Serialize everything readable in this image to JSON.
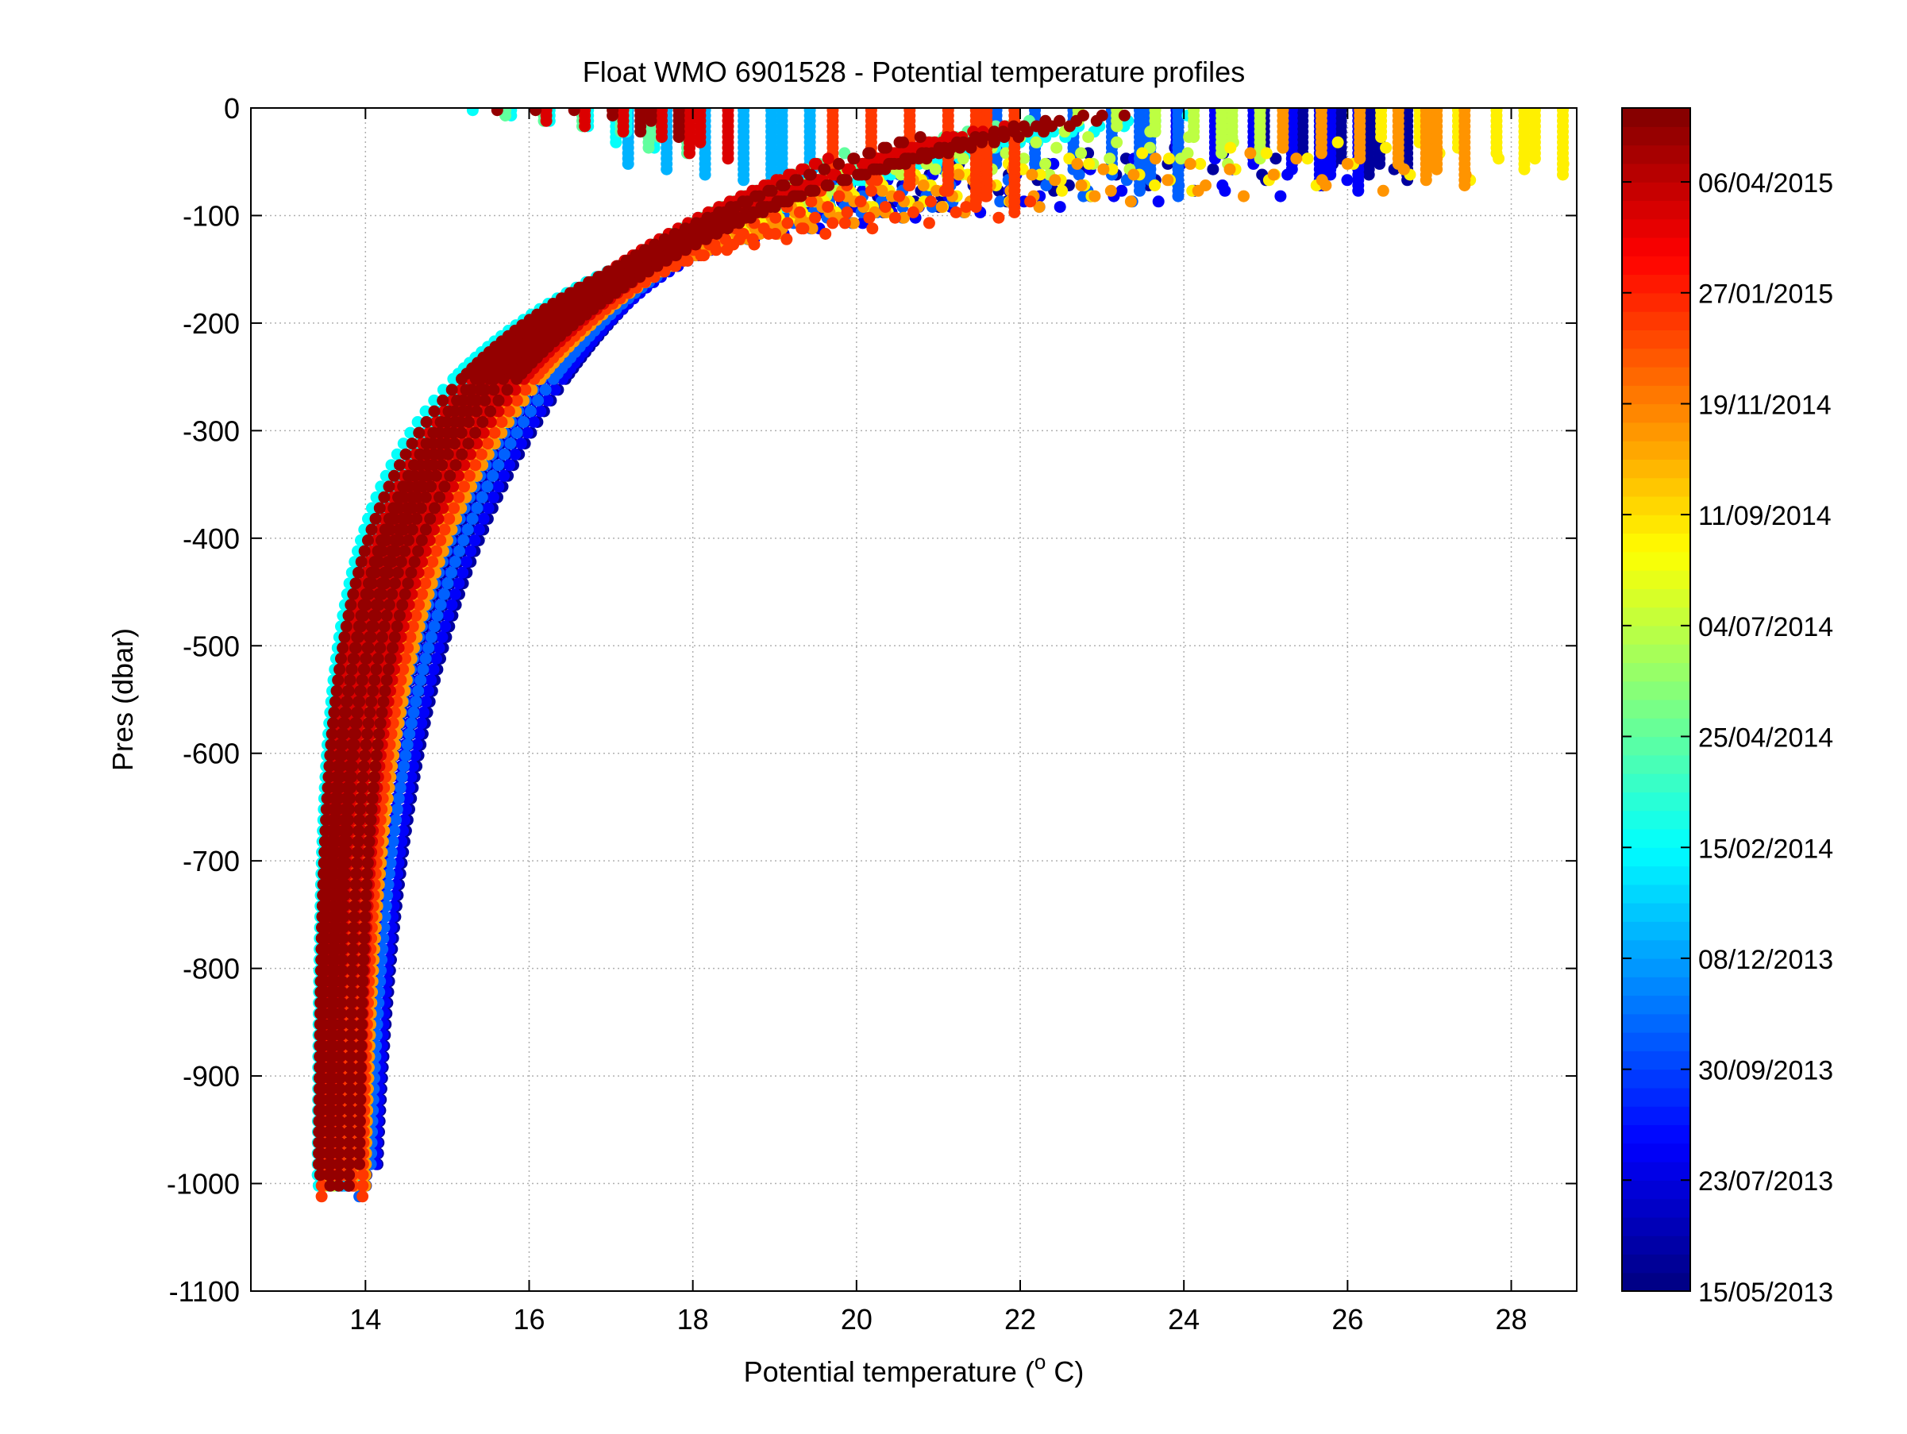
{
  "chart_data": {
    "type": "scatter",
    "title": "Float WMO 6901528 - Potential temperature profiles",
    "xlabel": "Potential temperature (",
    "xlabel_unit_sup": "o",
    "xlabel_unit_end": " C)",
    "ylabel": "Pres (dbar)",
    "xlim": [
      12.6,
      28.8
    ],
    "ylim": [
      -1100,
      0
    ],
    "xticks": [
      14,
      16,
      18,
      20,
      22,
      24,
      26,
      28
    ],
    "yticks": [
      0,
      -100,
      -200,
      -300,
      -400,
      -500,
      -600,
      -700,
      -800,
      -900,
      -1000,
      -1100
    ],
    "grid": true,
    "colormap": "jet",
    "colorbar": {
      "position": "right",
      "tick_labels": [
        "15/05/2013",
        "23/07/2013",
        "30/09/2013",
        "08/12/2013",
        "15/02/2014",
        "25/04/2014",
        "04/07/2014",
        "11/09/2014",
        "19/11/2014",
        "27/01/2015",
        "06/04/2015"
      ],
      "tick_fractions": [
        0,
        0.0938,
        0.1875,
        0.2813,
        0.375,
        0.4688,
        0.5625,
        0.6563,
        0.75,
        0.8438,
        0.9375
      ]
    },
    "profile_groups": [
      {
        "date_fraction": 0.03,
        "surface_temp": 25.8,
        "mixed_layer_depth": 50,
        "deep_base_temp": 13.75,
        "shape": 260
      },
      {
        "date_fraction": 0.12,
        "surface_temp": 25.2,
        "mixed_layer_depth": 60,
        "deep_base_temp": 13.75,
        "shape": 250
      },
      {
        "date_fraction": 0.22,
        "surface_temp": 23.0,
        "mixed_layer_depth": 65,
        "deep_base_temp": 13.72,
        "shape": 230
      },
      {
        "date_fraction": 0.3,
        "surface_temp": 18.5,
        "mixed_layer_depth": 70,
        "deep_base_temp": 13.7,
        "shape": 200
      },
      {
        "date_fraction": 0.38,
        "surface_temp": 16.6,
        "mixed_layer_depth": 20,
        "deep_base_temp": 13.65,
        "shape": 150
      },
      {
        "date_fraction": 0.47,
        "surface_temp": 17.0,
        "mixed_layer_depth": 25,
        "deep_base_temp": 13.68,
        "shape": 175
      },
      {
        "date_fraction": 0.56,
        "surface_temp": 24.0,
        "mixed_layer_depth": 30,
        "deep_base_temp": 13.7,
        "shape": 195
      },
      {
        "date_fraction": 0.64,
        "surface_temp": 27.7,
        "mixed_layer_depth": 45,
        "deep_base_temp": 13.7,
        "shape": 200
      },
      {
        "date_fraction": 0.73,
        "surface_temp": 26.5,
        "mixed_layer_depth": 55,
        "deep_base_temp": 13.7,
        "shape": 200
      },
      {
        "date_fraction": 0.82,
        "surface_temp": 21.0,
        "mixed_layer_depth": 80,
        "deep_base_temp": 13.68,
        "shape": 190
      },
      {
        "date_fraction": 0.91,
        "surface_temp": 17.5,
        "mixed_layer_depth": 30,
        "deep_base_temp": 13.65,
        "shape": 175
      },
      {
        "date_fraction": 0.98,
        "surface_temp": 16.9,
        "mixed_layer_depth": 10,
        "deep_base_temp": 13.66,
        "shape": 160
      }
    ]
  }
}
